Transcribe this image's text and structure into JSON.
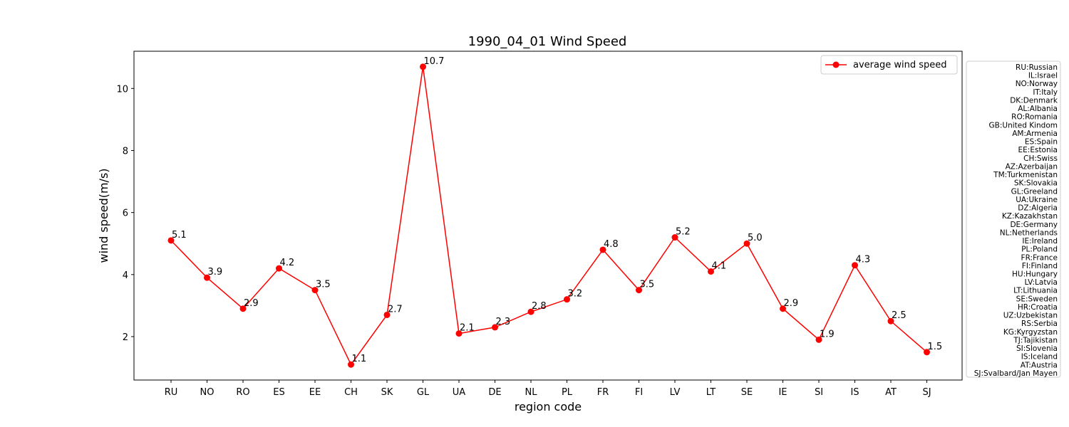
{
  "chart_data": {
    "type": "line",
    "title": "1990_04_01 Wind Speed",
    "xlabel": "region code",
    "ylabel": "wind speed(m/s)",
    "categories": [
      "RU",
      "NO",
      "RO",
      "ES",
      "EE",
      "CH",
      "SK",
      "GL",
      "UA",
      "DE",
      "NL",
      "PL",
      "FR",
      "FI",
      "LV",
      "LT",
      "SE",
      "IE",
      "SI",
      "IS",
      "AT",
      "SJ"
    ],
    "series": [
      {
        "name": "average wind speed",
        "color": "#ff0000",
        "values": [
          5.1,
          3.9,
          2.9,
          4.2,
          3.5,
          1.1,
          2.7,
          10.7,
          2.1,
          2.3,
          2.8,
          3.2,
          4.8,
          3.5,
          5.2,
          4.1,
          5.0,
          2.9,
          1.9,
          4.3,
          2.5,
          1.5
        ],
        "labels": [
          "5.1",
          "3.9",
          "2.9",
          "4.2",
          "3.5",
          "1.1",
          "2.7",
          "10.7",
          "2.1",
          "2.3",
          "2.8",
          "3.2",
          "4.8",
          "3.5",
          "5.2",
          "4.1",
          "5.0",
          "2.9",
          "1.9",
          "4.3",
          "2.5",
          "1.5"
        ]
      }
    ],
    "ylim": [
      0.6,
      11.2
    ],
    "yticks": [
      2,
      4,
      6,
      8,
      10
    ],
    "grid": false,
    "legend_position": "upper right",
    "region_legend": [
      "RU:Russian",
      "IL:Israel",
      "NO:Norway",
      "IT:Italy",
      "DK:Denmark",
      "AL:Albania",
      "RO:Romania",
      "GB:United Kindom",
      "AM:Armenia",
      "ES:Spain",
      "EE:Estonia",
      "CH:Swiss",
      "AZ:Azerbaijan",
      "TM:Turkmenistan",
      "SK:Slovakia",
      "GL:Greeland",
      "UA:Ukraine",
      "DZ:Algeria",
      "KZ:Kazakhstan",
      "DE:Germany",
      "NL:Netherlands",
      "IE:Ireland",
      "PL:Poland",
      "FR:France",
      "FI:Finland",
      "HU:Hungary",
      "LV:Latvia",
      "LT:Lithuania",
      "SE:Sweden",
      "HR:Croatia",
      "UZ:Uzbekistan",
      "RS:Serbia",
      "KG:Kyrgyzstan",
      "TJ:Tajikistan",
      "SI:Slovenia",
      "IS:Iceland",
      "AT:Austria",
      "SJ:Svalbard/Jan Mayen"
    ]
  }
}
